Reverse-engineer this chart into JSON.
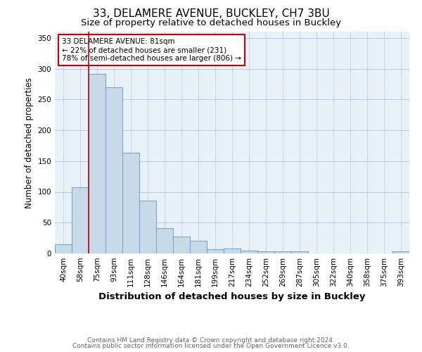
{
  "title1": "33, DELAMERE AVENUE, BUCKLEY, CH7 3BU",
  "title2": "Size of property relative to detached houses in Buckley",
  "xlabel": "Distribution of detached houses by size in Buckley",
  "ylabel": "Number of detached properties",
  "footnote1": "Contains HM Land Registry data © Crown copyright and database right 2024.",
  "footnote2": "Contains public sector information licensed under the Open Government Licence v3.0.",
  "annotation_line1": "33 DELAMERE AVENUE: 81sqm",
  "annotation_line2": "← 22% of detached houses are smaller (231)",
  "annotation_line3": "78% of semi-detached houses are larger (806) →",
  "categories": [
    "40sqm",
    "58sqm",
    "75sqm",
    "93sqm",
    "111sqm",
    "128sqm",
    "146sqm",
    "164sqm",
    "181sqm",
    "199sqm",
    "217sqm",
    "234sqm",
    "252sqm",
    "269sqm",
    "287sqm",
    "305sqm",
    "322sqm",
    "340sqm",
    "358sqm",
    "375sqm",
    "393sqm"
  ],
  "values": [
    15,
    108,
    291,
    270,
    163,
    86,
    41,
    28,
    21,
    7,
    8,
    5,
    4,
    3,
    4,
    0,
    0,
    0,
    0,
    0,
    3
  ],
  "bar_color": "#c8d9ea",
  "bar_edge_color": "#7aaac8",
  "red_line_index": 2,
  "red_line_color": "#cc0000",
  "annotation_box_color": "#cc0000",
  "ylim": [
    0,
    360
  ],
  "yticks": [
    0,
    50,
    100,
    150,
    200,
    250,
    300,
    350
  ],
  "background_color": "#ffffff",
  "plot_bg_color": "#e8f0f8",
  "grid_color": "#b8cede",
  "title1_fontsize": 11,
  "title2_fontsize": 9.5,
  "xlabel_fontsize": 9.5,
  "ylabel_fontsize": 8.5,
  "tick_fontsize": 7.5,
  "annotation_fontsize": 7.5,
  "footnote_fontsize": 6.5
}
